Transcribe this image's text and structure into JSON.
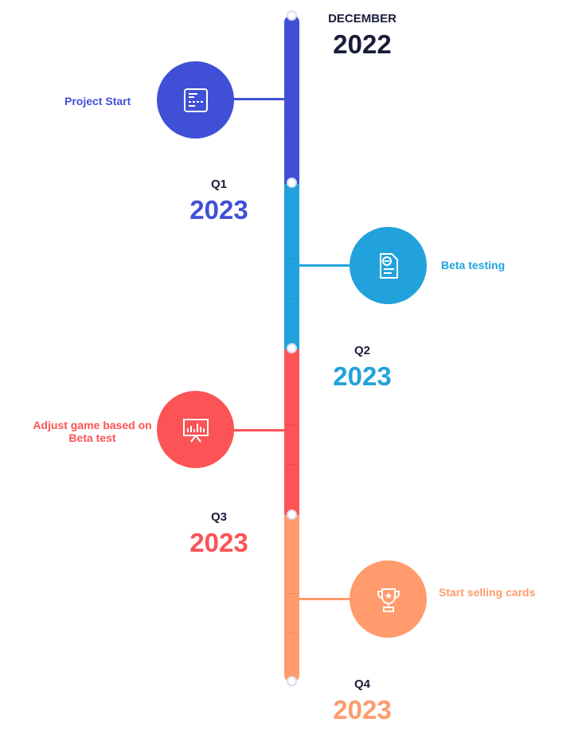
{
  "colors": {
    "milestone_1": "#4050d6",
    "milestone_2": "#22a2dc",
    "milestone_3": "#fc5356",
    "milestone_4": "#ff9b6c",
    "heading_dark": "#1a1c3a"
  },
  "periods": [
    {
      "key": "DECEMBER",
      "year": "2022"
    },
    {
      "key": "Q1",
      "year": "2023"
    },
    {
      "key": "Q2",
      "year": "2023"
    },
    {
      "key": "Q3",
      "year": "2023"
    },
    {
      "key": "Q4",
      "year": "2023"
    }
  ],
  "milestones": [
    {
      "label": "Project Start",
      "icon": "id-card-icon"
    },
    {
      "label": "Beta testing",
      "icon": "document-icon"
    },
    {
      "label_line1": "Adjust game based on",
      "label_line2": "Beta test",
      "icon": "presentation-board-icon"
    },
    {
      "label": "Start selling cards",
      "icon": "trophy-icon"
    }
  ]
}
